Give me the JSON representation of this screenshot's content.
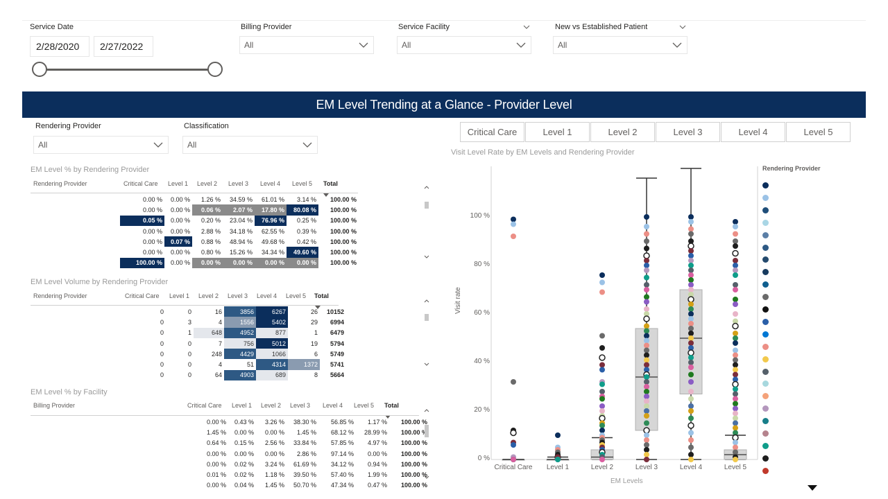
{
  "filters": {
    "service_date": {
      "label": "Service Date",
      "start": "2/28/2020",
      "end": "2/27/2022"
    },
    "billing_provider": {
      "label": "Billing Provider",
      "value": "All"
    },
    "service_facility": {
      "label": "Service Facility",
      "value": "All"
    },
    "new_vs_established": {
      "label": "New vs Established Patient",
      "value": "All"
    },
    "rendering_provider": {
      "label": "Rendering Provider",
      "value": "All"
    },
    "classification": {
      "label": "Classification",
      "value": "All"
    }
  },
  "banner": {
    "title": "EM Level Trending at a Glance - Provider Level"
  },
  "level_buttons": [
    "Critical Care",
    "Level 1",
    "Level 2",
    "Level 3",
    "Level 4",
    "Level 5"
  ],
  "pct_table": {
    "title": "EM Level % by Rendering Provider",
    "row_header": "Rendering Provider",
    "columns": [
      "Critical Care",
      "Level 1",
      "Level 2",
      "Level 3",
      "Level 4",
      "Level 5",
      "Total"
    ],
    "rows": [
      [
        "0.00 %",
        "0.00 %",
        "1.26 %",
        "34.59 %",
        "61.01 %",
        "3.14 %",
        "100.00 %"
      ],
      [
        "0.00 %",
        "0.00 %",
        "0.06 %",
        "2.07 %",
        "17.80 %",
        "80.08 %",
        "100.00 %"
      ],
      [
        "0.05 %",
        "0.00 %",
        "0.20 %",
        "23.04 %",
        "76.96 %",
        "0.25 %",
        "100.00 %"
      ],
      [
        "0.00 %",
        "0.00 %",
        "2.88 %",
        "34.18 %",
        "62.55 %",
        "0.39 %",
        "100.00 %"
      ],
      [
        "0.00 %",
        "0.07 %",
        "0.88 %",
        "48.94 %",
        "49.68 %",
        "0.42 %",
        "100.00 %"
      ],
      [
        "0.00 %",
        "0.00 %",
        "0.80 %",
        "15.26 %",
        "34.34 %",
        "49.60 %",
        "100.00 %"
      ],
      [
        "100.00 %",
        "0.00 %",
        "0.00 %",
        "0.00 %",
        "0.00 %",
        "0.00 %",
        "100.00 %"
      ]
    ]
  },
  "vol_table": {
    "title": "EM Level Volume by Rendering Provider",
    "row_header": "Rendering Provider",
    "columns": [
      "Critical Care",
      "Level 1",
      "Level 2",
      "Level 3",
      "Level 4",
      "Level 5",
      "Total"
    ],
    "rows": [
      [
        "0",
        "0",
        "16",
        "3856",
        "6267",
        "26",
        "10152"
      ],
      [
        "0",
        "3",
        "4",
        "1556",
        "5402",
        "29",
        "6994"
      ],
      [
        "0",
        "1",
        "648",
        "4952",
        "877",
        "1",
        "6479"
      ],
      [
        "0",
        "0",
        "7",
        "756",
        "5012",
        "19",
        "5794"
      ],
      [
        "0",
        "0",
        "248",
        "4429",
        "1066",
        "6",
        "5749"
      ],
      [
        "0",
        "0",
        "4",
        "51",
        "4314",
        "1372",
        "5741"
      ],
      [
        "0",
        "0",
        "64",
        "4903",
        "689",
        "8",
        "5664"
      ]
    ]
  },
  "fac_table": {
    "title": "EM Level % by Facility",
    "row_header": "Billing Provider",
    "columns": [
      "Critical Care",
      "Level 1",
      "Level 2",
      "Level 3",
      "Level 4",
      "Level 5",
      "Total"
    ],
    "rows": [
      [
        "0.00 %",
        "0.43 %",
        "3.26 %",
        "38.30 %",
        "56.85 %",
        "1.17 %",
        "100.00 %"
      ],
      [
        "1.45 %",
        "0.00 %",
        "0.00 %",
        "1.45 %",
        "68.12 %",
        "28.99 %",
        "100.00 %"
      ],
      [
        "0.64 %",
        "0.15 %",
        "2.56 %",
        "33.84 %",
        "57.85 %",
        "4.97 %",
        "100.00 %"
      ],
      [
        "0.00 %",
        "0.00 %",
        "0.00 %",
        "2.86 %",
        "97.14 %",
        "0.00 %",
        "100.00 %"
      ],
      [
        "0.00 %",
        "0.02 %",
        "3.24 %",
        "61.69 %",
        "34.12 %",
        "0.94 %",
        "100.00 %"
      ],
      [
        "0.01 %",
        "0.02 %",
        "1.18 %",
        "39.50 %",
        "57.40 %",
        "1.99 %",
        "100.00 %"
      ],
      [
        "0.00 %",
        "0.04 %",
        "1.45 %",
        "50.70 %",
        "47.34 %",
        "0.47 %",
        "100.00 %"
      ]
    ]
  },
  "chart_data": {
    "type": "scatter",
    "title": "Visit Level Rate by EM Levels and Rendering Provider",
    "xlabel": "EM Levels",
    "ylabel": "Visit rate",
    "categories": [
      "Critical Care",
      "Level 1",
      "Level 2",
      "Level 3",
      "Level 4",
      "Level 5"
    ],
    "y_ticks": [
      "0 %",
      "20 %",
      "40 %",
      "60 %",
      "80 %",
      "100 %"
    ],
    "ylim": [
      0,
      1.2
    ],
    "legend_title": "Rendering Provider",
    "legend_placement": "right",
    "box_stats": [
      {
        "q1": 0,
        "median": 0,
        "q3": 0,
        "lo": 0,
        "hi": 0
      },
      {
        "q1": 0,
        "median": 0,
        "q3": 0,
        "lo": 0,
        "hi": 0.01
      },
      {
        "q1": 0,
        "median": 0.01,
        "q3": 0.04,
        "lo": 0,
        "hi": 0.09
      },
      {
        "q1": 0.12,
        "median": 0.34,
        "q3": 0.54,
        "lo": 0,
        "hi": 1.16
      },
      {
        "q1": 0.27,
        "median": 0.5,
        "q3": 0.7,
        "lo": 0,
        "hi": 1.2
      },
      {
        "q1": 0,
        "median": 0.02,
        "q3": 0.04,
        "lo": 0,
        "hi": 0.1
      }
    ],
    "points": [
      [
        0.99,
        0.97,
        0.92,
        0.32,
        0.12,
        0.11,
        0.07,
        0.06,
        0.01,
        0,
        0,
        0
      ],
      [
        0.1,
        0.05,
        0.04,
        0.03,
        0.02,
        0.01,
        0.01,
        0,
        0,
        0
      ],
      [
        0.76,
        0.73,
        0.69,
        0.51,
        0.46,
        0.42,
        0.39,
        0.37,
        0.32,
        0.31,
        0.28,
        0.26,
        0.25,
        0.22,
        0.2,
        0.18,
        0.17,
        0.15,
        0.14,
        0.12,
        0.1,
        0.09,
        0.08,
        0.07,
        0.06,
        0.05,
        0.04,
        0.03,
        0.02,
        0.01,
        0
      ],
      [
        1,
        0.96,
        0.93,
        0.9,
        0.87,
        0.84,
        0.82,
        0.8,
        0.78,
        0.75,
        0.72,
        0.7,
        0.67,
        0.65,
        0.62,
        0.6,
        0.58,
        0.55,
        0.53,
        0.51,
        0.49,
        0.47,
        0.45,
        0.43,
        0.41,
        0.39,
        0.37,
        0.35,
        0.34,
        0.32,
        0.3,
        0.28,
        0.26,
        0.24,
        0.22,
        0.2,
        0.18,
        0.15,
        0.12,
        0.1,
        0.08,
        0.06,
        0.04,
        0.02,
        0
      ],
      [
        1,
        0.98,
        0.95,
        0.93,
        0.9,
        0.88,
        0.86,
        0.84,
        0.82,
        0.8,
        0.78,
        0.76,
        0.74,
        0.72,
        0.7,
        0.68,
        0.66,
        0.64,
        0.62,
        0.6,
        0.58,
        0.56,
        0.54,
        0.52,
        0.5,
        0.48,
        0.46,
        0.44,
        0.42,
        0.4,
        0.38,
        0.35,
        0.32,
        0.28,
        0.25,
        0.22,
        0.2,
        0.17,
        0.14,
        0.11,
        0.08,
        0.05,
        0.02,
        0
      ],
      [
        0.98,
        0.96,
        0.93,
        0.9,
        0.88,
        0.85,
        0.82,
        0.8,
        0.78,
        0.76,
        0.72,
        0.7,
        0.66,
        0.64,
        0.6,
        0.57,
        0.55,
        0.52,
        0.5,
        0.48,
        0.45,
        0.43,
        0.41,
        0.39,
        0.37,
        0.35,
        0.33,
        0.31,
        0.29,
        0.27,
        0.25,
        0.23,
        0.21,
        0.19,
        0.17,
        0.15,
        0.13,
        0.11,
        0.09,
        0.07,
        0.05,
        0.03,
        0.01,
        0
      ]
    ],
    "legend_colors": [
      "#0b2e5c",
      "#9bc2e6",
      "#1f4e79",
      "#a9d6e5",
      "#5b7fa6",
      "#2e5984",
      "#244a6e",
      "#173b5f",
      "#0f5f8f",
      "#6a6a6a",
      "#111111",
      "#2a5fa8",
      "#0078d4",
      "#ec8f86",
      "#f2c94c",
      "#55606a",
      "#a7d8de",
      "#f4a27a",
      "#b497bd",
      "#177e89",
      "#b5838d",
      "#0f9d8a",
      "#1e1e1e",
      "#c0392b"
    ],
    "point_colors": [
      "#0b2e5c",
      "#9bc2e6",
      "#ec8f86",
      "#6a6a6a",
      "#1e1e1e",
      "#f2c94c",
      "#7b2d3b",
      "#2a5fa8",
      "#b497bd",
      "#0f9d8a",
      "#55606a",
      "#d95fa0",
      "#1f7a1f",
      "#8a5cc4",
      "#e8b4c8",
      "#c8d8a8",
      "#4a6fa5",
      "#d4a017",
      "#2e8b57"
    ]
  }
}
